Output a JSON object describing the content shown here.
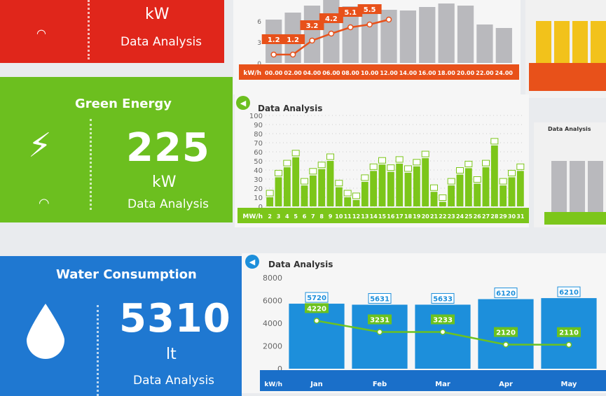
{
  "panels": {
    "power": {
      "unit": "kW",
      "subtitle": "Data Analysis",
      "color": "#e0261b"
    },
    "green": {
      "title": "Green Energy",
      "value": "225",
      "unit": "kW",
      "subtitle": "Data Analysis",
      "color": "#6cbf1f",
      "icon": "lightning-bolt-icon"
    },
    "water": {
      "title": "Water Consumption",
      "value": "5310",
      "unit": "lt",
      "subtitle": "Data Analysis",
      "color": "#1f78d1",
      "icon": "water-drop-icon"
    }
  },
  "side_cards": {
    "title": "Data Analysis"
  },
  "chart_data": [
    {
      "type": "bar",
      "title": "",
      "xlabel": "kW/h",
      "ylim": [
        0,
        9
      ],
      "yticks": [
        "0",
        "3",
        "6"
      ],
      "categories": [
        "00.00",
        "02.00",
        "04.00",
        "06.00",
        "08.00",
        "10.00",
        "12.00",
        "14.00",
        "16.00",
        "18.00",
        "20.00",
        "22.00",
        "24.00"
      ],
      "series": [
        {
          "type": "bar",
          "values": [
            6.2,
            7.2,
            8.2,
            9.2,
            8.1,
            8.1,
            7.6,
            7.5,
            8.0,
            8.5,
            8.2,
            5.5,
            5.0
          ]
        },
        {
          "type": "line",
          "values": [
            1.2,
            1.2,
            3.2,
            4.2,
            5.1,
            5.5,
            6.2,
            null,
            null,
            null,
            null,
            null,
            null
          ],
          "labels": [
            "1.2",
            "1.2",
            "3.2",
            "4.2",
            "5.1",
            "5.5"
          ]
        }
      ],
      "colors": {
        "bar": "#b9b9bd",
        "line": "#e8511a",
        "axis": "#e8511a"
      }
    },
    {
      "type": "bar",
      "title": "Data Analysis",
      "xlabel": "MW/h",
      "ylim": [
        0,
        100
      ],
      "yticks": [
        "0",
        "10",
        "20",
        "30",
        "40",
        "50",
        "60",
        "70",
        "80",
        "90",
        "100"
      ],
      "categories": [
        "2",
        "3",
        "4",
        "5",
        "6",
        "7",
        "8",
        "9",
        "10",
        "11",
        "12",
        "13",
        "14",
        "15",
        "16",
        "17",
        "18",
        "19",
        "20",
        "21",
        "22",
        "23",
        "24",
        "25",
        "26",
        "27",
        "28",
        "29",
        "30",
        "31"
      ],
      "values": [
        10,
        32,
        43,
        54,
        23,
        34,
        41,
        50,
        21,
        10,
        7,
        27,
        39,
        46,
        38,
        47,
        37,
        44,
        53,
        16,
        5,
        23,
        35,
        42,
        25,
        43,
        67,
        23,
        32,
        39
      ],
      "colors": {
        "bar": "#7cc61a",
        "axis": "#7cc61a"
      }
    },
    {
      "type": "bar",
      "title": "Data Analysis",
      "xlabel": "kW/h",
      "ylim": [
        0,
        8000
      ],
      "yticks": [
        "0",
        "2000",
        "4000",
        "6000",
        "8000"
      ],
      "categories": [
        "Jan",
        "Feb",
        "Mar",
        "Apr",
        "May"
      ],
      "series": [
        {
          "type": "bar",
          "values": [
            5720,
            5631,
            5633,
            6120,
            6210
          ]
        },
        {
          "type": "line",
          "values": [
            4220,
            3231,
            3233,
            2120,
            2110
          ]
        }
      ],
      "colors": {
        "bar": "#1d8fdb",
        "line": "#6cc21f",
        "axis": "#1a6fc9"
      }
    }
  ]
}
